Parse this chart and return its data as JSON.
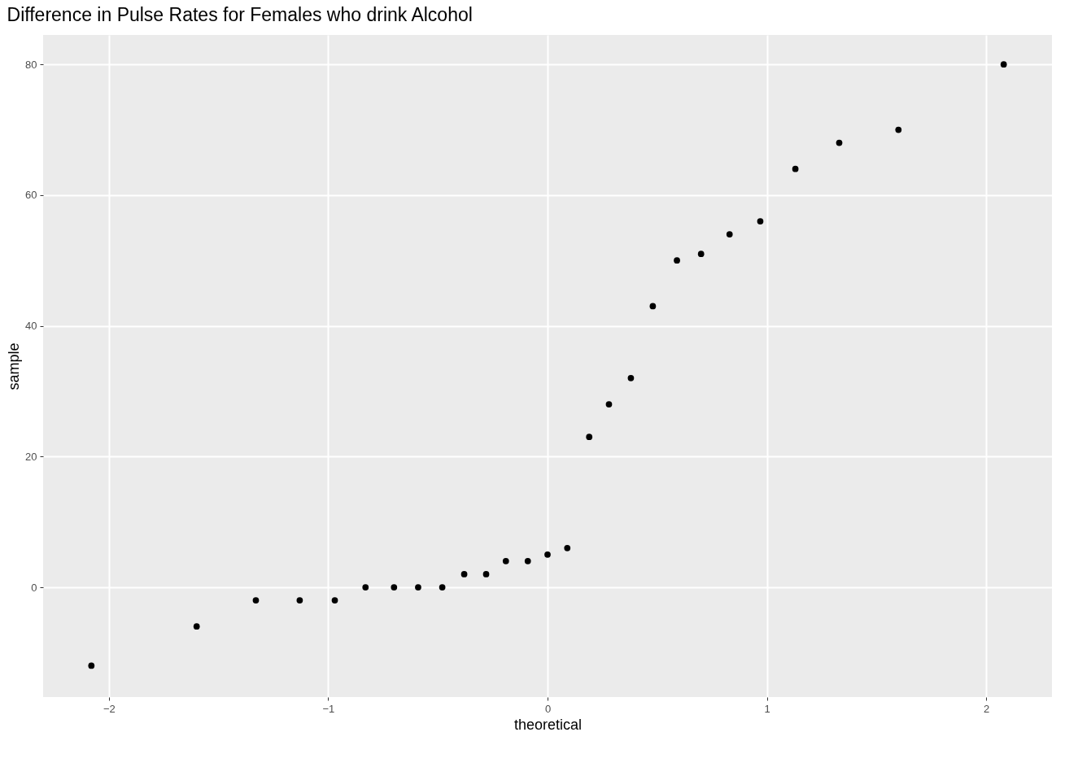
{
  "chart_data": {
    "type": "scatter",
    "title": "Difference in Pulse Rates for Females who drink Alcohol",
    "xlabel": "theoretical",
    "ylabel": "sample",
    "x": [
      -2.08,
      -1.6,
      -1.33,
      -1.13,
      -0.97,
      -0.83,
      -0.7,
      -0.59,
      -0.48,
      -0.38,
      -0.28,
      -0.19,
      -0.09,
      0,
      0.09,
      0.19,
      0.28,
      0.38,
      0.48,
      0.59,
      0.7,
      0.83,
      0.97,
      1.13,
      1.33,
      1.6,
      2.08
    ],
    "series": [
      {
        "color": "#000000",
        "values": [
          -12,
          -6,
          -2,
          -2,
          -2,
          0,
          0,
          0,
          0,
          2,
          2,
          4,
          4,
          5,
          6,
          23,
          28,
          32,
          43,
          50,
          51,
          54,
          56,
          64,
          68,
          70,
          80
        ]
      }
    ],
    "xlim": [
      -2.3,
      2.3
    ],
    "ylim": [
      -16.8,
      84.5
    ],
    "xticks": [
      -2,
      -1,
      0,
      1,
      2
    ],
    "yticks": [
      0,
      20,
      40,
      60,
      80
    ],
    "grid": true,
    "marker": "circle"
  }
}
